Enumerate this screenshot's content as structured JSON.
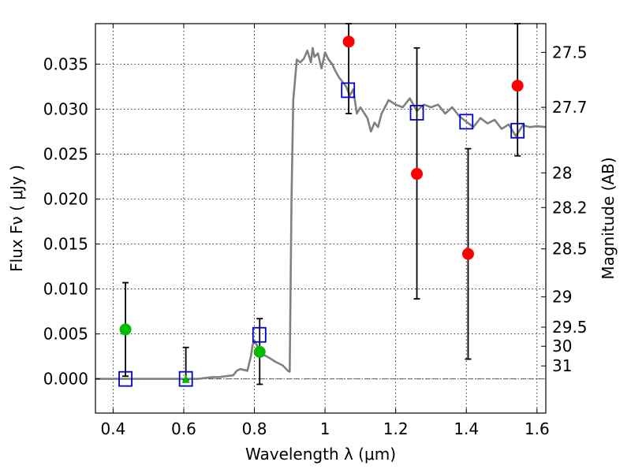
{
  "chart_data": {
    "type": "scatter",
    "title": "",
    "xlabel": "Wavelength  λ (μm)",
    "ylabel": "Flux  Fν  ( μJy )",
    "y2label": "Magnitude (AB)",
    "xlim": [
      0.35,
      1.625
    ],
    "ylim": [
      -0.0038,
      0.0395
    ],
    "grid": true,
    "x_ticks": [
      0.4,
      0.6,
      0.8,
      1.0,
      1.2,
      1.4,
      1.6
    ],
    "x_tick_labels": [
      "0.4",
      "0.6",
      "0.8",
      "1",
      "1.2",
      "1.4",
      "1.6"
    ],
    "y_ticks": [
      0.0,
      0.005,
      0.01,
      0.015,
      0.02,
      0.025,
      0.03,
      0.035
    ],
    "y_tick_labels": [
      "0.000",
      "0.005",
      "0.010",
      "0.015",
      "0.020",
      "0.025",
      "0.030",
      "0.035"
    ],
    "y2_ticks": [
      {
        "label": "27.5",
        "mag": 27.5
      },
      {
        "label": "27.7",
        "mag": 27.7
      },
      {
        "label": "28",
        "mag": 28.0
      },
      {
        "label": "28.2",
        "mag": 28.2
      },
      {
        "label": "28.5",
        "mag": 28.5
      },
      {
        "label": "29",
        "mag": 29.0
      },
      {
        "label": "29.5",
        "mag": 29.5
      },
      {
        "label": "30",
        "mag": 30.0
      },
      {
        "label": "31",
        "mag": 31.0
      }
    ],
    "spectrum": {
      "color": "#808080",
      "x": [
        0.35,
        0.64,
        0.66,
        0.68,
        0.7,
        0.72,
        0.74,
        0.75,
        0.76,
        0.77,
        0.78,
        0.79,
        0.795,
        0.8,
        0.81,
        0.82,
        0.84,
        0.86,
        0.88,
        0.895,
        0.9,
        0.905,
        0.91,
        0.92,
        0.93,
        0.94,
        0.95,
        0.96,
        0.965,
        0.97,
        0.98,
        0.99,
        1.0,
        1.01,
        1.02,
        1.03,
        1.04,
        1.05,
        1.06,
        1.07,
        1.08,
        1.09,
        1.1,
        1.12,
        1.13,
        1.14,
        1.15,
        1.16,
        1.18,
        1.2,
        1.22,
        1.24,
        1.26,
        1.28,
        1.3,
        1.32,
        1.34,
        1.36,
        1.38,
        1.4,
        1.42,
        1.44,
        1.46,
        1.48,
        1.5,
        1.52,
        1.54,
        1.56,
        1.58,
        1.6,
        1.625
      ],
      "y": [
        0.0,
        0.0,
        0.0001,
        0.0002,
        0.0002,
        0.0003,
        0.0004,
        0.0009,
        0.0011,
        0.001,
        0.0009,
        0.0025,
        0.0038,
        0.0043,
        0.0035,
        0.0028,
        0.0024,
        0.0019,
        0.0015,
        0.0009,
        0.0008,
        0.02,
        0.031,
        0.0355,
        0.0352,
        0.0356,
        0.0365,
        0.0352,
        0.0368,
        0.0358,
        0.0362,
        0.0345,
        0.0363,
        0.0355,
        0.035,
        0.0342,
        0.0335,
        0.033,
        0.0325,
        0.0315,
        0.0322,
        0.0295,
        0.0302,
        0.029,
        0.0275,
        0.0285,
        0.028,
        0.0295,
        0.031,
        0.0305,
        0.0302,
        0.0312,
        0.0298,
        0.0305,
        0.0302,
        0.0305,
        0.0295,
        0.0302,
        0.0292,
        0.0286,
        0.028,
        0.029,
        0.0284,
        0.0288,
        0.0278,
        0.0283,
        0.027,
        0.0282,
        0.028,
        0.0281,
        0.028
      ]
    },
    "series": [
      {
        "marker": "square-open",
        "color": "#0000cc",
        "x": [
          0.435,
          0.606,
          0.814,
          1.065,
          1.26,
          1.4,
          1.545
        ],
        "y": [
          0.0,
          0.0,
          0.0049,
          0.0321,
          0.0296,
          0.0286,
          0.0276
        ]
      },
      {
        "marker": "circle",
        "color": "#ff0000",
        "x": [
          1.067,
          1.26,
          1.405,
          1.545
        ],
        "y": [
          0.0375,
          0.0228,
          0.0139,
          0.0326
        ],
        "err_low": [
          0.0295,
          0.0089,
          0.0022,
          0.0248
        ],
        "err_high": [
          0.0395,
          0.0368,
          0.0256,
          0.0395
        ]
      },
      {
        "marker": "circle",
        "color": "#00bb00",
        "x": [
          0.435,
          0.815
        ],
        "y": [
          0.0055,
          0.003
        ],
        "err_low": [
          0.0003,
          -0.0006
        ],
        "err_high": [
          0.0107,
          0.0067
        ]
      },
      {
        "marker": "triangle",
        "color": "#00bb00",
        "x": [
          0.606
        ],
        "y": [
          -0.0001
        ],
        "err_low": [
          -0.0001
        ],
        "err_high": [
          0.0035
        ]
      }
    ]
  }
}
